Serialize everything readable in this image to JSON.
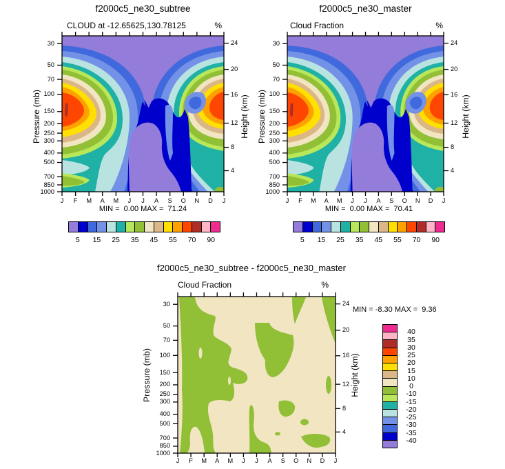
{
  "figure": {
    "background": "#FFFFFF",
    "months": [
      "J",
      "F",
      "M",
      "A",
      "M",
      "J",
      "J",
      "A",
      "S",
      "O",
      "N",
      "D",
      "J"
    ],
    "pressure_ticks": [
      30,
      50,
      70,
      100,
      150,
      200,
      250,
      300,
      400,
      500,
      700,
      850,
      1000
    ],
    "height_ticks": [
      24,
      20,
      16,
      12,
      8,
      4
    ],
    "palette": {
      "description": "contour fill colors, low value to high value",
      "colors": [
        "#937CDA",
        "#0000CC",
        "#3F69DC",
        "#7392E7",
        "#B9E3E1",
        "#1FB0A6",
        "#B8E859",
        "#91BF36",
        "#F1E5C2",
        "#DBB787",
        "#FFE000",
        "#FFA100",
        "#FF4600",
        "#AF2D26",
        "#FFB5C5",
        "#EF2B90"
      ]
    }
  },
  "chart_data": [
    {
      "type": "contour",
      "title": "f2000c5_ne30_subtree",
      "subtitle": "CLOUD at -12.65625,130.78125",
      "units": "%",
      "ylabel_left": "Pressure (mb)",
      "ylabel_right": "Height (km)",
      "y_scale": "log-pressure",
      "x_ticklabels": [
        "J",
        "F",
        "M",
        "A",
        "M",
        "J",
        "J",
        "A",
        "S",
        "O",
        "N",
        "D",
        "J"
      ],
      "y_ticklabels_pressure": [
        30,
        50,
        70,
        100,
        150,
        200,
        250,
        300,
        400,
        500,
        700,
        850,
        1000
      ],
      "y_ticklabels_height": [
        24,
        20,
        16,
        12,
        8,
        4
      ],
      "min": 0.0,
      "max": 71.24,
      "stats_text": "MIN =  0.00 MAX =  71.24",
      "contour_levels": [
        5,
        10,
        15,
        20,
        25,
        30,
        35,
        40,
        45,
        50,
        55,
        60,
        70,
        80,
        90
      ],
      "colorbar_labels": [
        5,
        15,
        25,
        35,
        45,
        55,
        70,
        90
      ],
      "colorbar_colors": [
        "#937CDA",
        "#0000CC",
        "#3F69DC",
        "#7392E7",
        "#B9E3E1",
        "#1FB0A6",
        "#B8E859",
        "#91BF36",
        "#F1E5C2",
        "#DBB787",
        "#FFE000",
        "#FFA100",
        "#FF4600",
        "#AF2D26",
        "#FFB5C5",
        "#EF2B90"
      ],
      "estimated_field": {
        "estimated_from_colors": true,
        "months": [
          "J",
          "F",
          "M",
          "A",
          "M",
          "J",
          "J",
          "A",
          "S",
          "O",
          "N",
          "D",
          "J"
        ],
        "pressure_levels": [
          30,
          50,
          70,
          100,
          150,
          200,
          250,
          300,
          400,
          500,
          700,
          850,
          1000
        ],
        "values_percent": [
          [
            2,
            2,
            2,
            2,
            2,
            2,
            2,
            2,
            2,
            2,
            2,
            2,
            2
          ],
          [
            3,
            3,
            2,
            2,
            2,
            2,
            2,
            2,
            2,
            2,
            2,
            3,
            3
          ],
          [
            8,
            7,
            5,
            3,
            2,
            2,
            2,
            2,
            2,
            3,
            4,
            7,
            8
          ],
          [
            55,
            45,
            25,
            15,
            8,
            7,
            6,
            5,
            7,
            12,
            20,
            40,
            55
          ],
          [
            72,
            62,
            38,
            20,
            12,
            8,
            7,
            6,
            8,
            15,
            30,
            55,
            70
          ],
          [
            60,
            52,
            30,
            16,
            10,
            8,
            7,
            5,
            6,
            12,
            25,
            45,
            58
          ],
          [
            46,
            38,
            22,
            12,
            8,
            6,
            5,
            4,
            5,
            8,
            18,
            35,
            45
          ],
          [
            36,
            30,
            18,
            10,
            6,
            4,
            4,
            3,
            4,
            6,
            12,
            28,
            35
          ],
          [
            30,
            26,
            15,
            8,
            5,
            3,
            3,
            2,
            3,
            5,
            10,
            22,
            28
          ],
          [
            28,
            24,
            14,
            8,
            4,
            3,
            2,
            2,
            2,
            4,
            8,
            18,
            26
          ],
          [
            22,
            20,
            12,
            7,
            4,
            3,
            2,
            2,
            2,
            3,
            6,
            12,
            20
          ],
          [
            28,
            26,
            15,
            8,
            5,
            4,
            3,
            2,
            2,
            3,
            6,
            14,
            25
          ],
          [
            12,
            12,
            8,
            5,
            4,
            3,
            3,
            2,
            2,
            2,
            4,
            8,
            10
          ]
        ]
      }
    },
    {
      "type": "contour",
      "title": "f2000c5_ne30_master",
      "subtitle": "Cloud Fraction",
      "units": "%",
      "ylabel_left": "Pressure (mb)",
      "ylabel_right": "Height (km)",
      "y_scale": "log-pressure",
      "x_ticklabels": [
        "J",
        "F",
        "M",
        "A",
        "M",
        "J",
        "J",
        "A",
        "S",
        "O",
        "N",
        "D",
        "J"
      ],
      "y_ticklabels_pressure": [
        30,
        50,
        70,
        100,
        150,
        200,
        250,
        300,
        400,
        500,
        700,
        850,
        1000
      ],
      "y_ticklabels_height": [
        24,
        20,
        16,
        12,
        8,
        4
      ],
      "min": 0.0,
      "max": 70.41,
      "stats_text": "MIN =  0.00 MAX =  70.41",
      "contour_levels": [
        5,
        10,
        15,
        20,
        25,
        30,
        35,
        40,
        45,
        50,
        55,
        60,
        70,
        80,
        90
      ],
      "colorbar_labels": [
        5,
        15,
        25,
        35,
        45,
        55,
        70,
        90
      ],
      "colorbar_colors": [
        "#937CDA",
        "#0000CC",
        "#3F69DC",
        "#7392E7",
        "#B9E3E1",
        "#1FB0A6",
        "#B8E859",
        "#91BF36",
        "#F1E5C2",
        "#DBB787",
        "#FFE000",
        "#FFA100",
        "#FF4600",
        "#AF2D26",
        "#FFB5C5",
        "#EF2B90"
      ],
      "estimated_field": {
        "estimated_from_colors": true,
        "months": [
          "J",
          "F",
          "M",
          "A",
          "M",
          "J",
          "J",
          "A",
          "S",
          "O",
          "N",
          "D",
          "J"
        ],
        "pressure_levels": [
          30,
          50,
          70,
          100,
          150,
          200,
          250,
          300,
          400,
          500,
          700,
          850,
          1000
        ],
        "values_percent": [
          [
            2,
            2,
            2,
            2,
            2,
            2,
            2,
            2,
            2,
            2,
            2,
            2,
            2
          ],
          [
            3,
            3,
            2,
            2,
            2,
            2,
            2,
            2,
            2,
            2,
            2,
            3,
            3
          ],
          [
            8,
            7,
            5,
            3,
            2,
            2,
            2,
            2,
            2,
            3,
            4,
            7,
            8
          ],
          [
            54,
            46,
            26,
            15,
            8,
            7,
            6,
            5,
            7,
            12,
            21,
            40,
            54
          ],
          [
            70,
            63,
            38,
            20,
            12,
            8,
            7,
            6,
            8,
            15,
            30,
            56,
            70
          ],
          [
            58,
            52,
            30,
            16,
            10,
            8,
            7,
            5,
            6,
            12,
            26,
            46,
            58
          ],
          [
            45,
            38,
            22,
            12,
            8,
            6,
            5,
            4,
            5,
            8,
            18,
            36,
            45
          ],
          [
            35,
            30,
            18,
            10,
            6,
            4,
            4,
            3,
            4,
            6,
            13,
            28,
            34
          ],
          [
            29,
            26,
            15,
            8,
            5,
            3,
            3,
            2,
            3,
            5,
            10,
            22,
            28
          ],
          [
            27,
            24,
            14,
            8,
            4,
            3,
            2,
            2,
            2,
            4,
            8,
            18,
            26
          ],
          [
            23,
            21,
            12,
            7,
            4,
            3,
            2,
            2,
            2,
            3,
            6,
            13,
            21
          ],
          [
            30,
            27,
            15,
            8,
            5,
            4,
            3,
            2,
            2,
            3,
            6,
            15,
            26
          ],
          [
            13,
            13,
            8,
            5,
            4,
            3,
            3,
            2,
            2,
            2,
            4,
            8,
            11
          ]
        ]
      }
    },
    {
      "type": "contour",
      "title": "f2000c5_ne30_subtree - f2000c5_ne30_master",
      "subtitle": "Cloud Fraction",
      "units": "%",
      "ylabel_left": "Pressure (mb)",
      "ylabel_right": "Height (km)",
      "y_scale": "log-pressure",
      "x_ticklabels": [
        "J",
        "F",
        "M",
        "A",
        "M",
        "J",
        "J",
        "A",
        "S",
        "O",
        "N",
        "D",
        "J"
      ],
      "y_ticklabels_pressure": [
        30,
        50,
        70,
        100,
        150,
        200,
        250,
        300,
        400,
        500,
        700,
        850,
        1000
      ],
      "y_ticklabels_height": [
        24,
        20,
        16,
        12,
        8,
        4
      ],
      "min": -8.3,
      "max": 9.36,
      "stats_text": "MIN = -8.30 MAX =  9.36",
      "contour_levels": [
        -40,
        -35,
        -30,
        -25,
        -20,
        -15,
        -10,
        0,
        10,
        15,
        20,
        25,
        30,
        35,
        40
      ],
      "colorbar_labels": [
        40,
        35,
        30,
        25,
        20,
        15,
        10,
        0,
        -10,
        -15,
        -20,
        -25,
        -30,
        -35,
        -40
      ],
      "colorbar_colors": [
        "#EF2B90",
        "#FFB5C5",
        "#AF2D26",
        "#FF4600",
        "#FFA100",
        "#FFE000",
        "#DBB787",
        "#F1E5C2",
        "#91BF36",
        "#B8E859",
        "#1FB0A6",
        "#B9E3E1",
        "#7392E7",
        "#3F69DC",
        "#0000CC",
        "#937CDA"
      ],
      "estimated_field": {
        "estimated_from_colors": true,
        "months": [
          "J",
          "F",
          "M",
          "A",
          "M",
          "J",
          "J",
          "A",
          "S",
          "O",
          "N",
          "D",
          "J"
        ],
        "pressure_levels": [
          30,
          50,
          70,
          100,
          150,
          200,
          250,
          300,
          400,
          500,
          700,
          850,
          1000
        ],
        "values_percent_diff": [
          [
            -2,
            -2,
            1,
            1,
            1,
            1,
            1,
            1,
            1,
            -2,
            1,
            -1,
            -2
          ],
          [
            -2,
            -2,
            -2,
            1,
            1,
            1,
            -2,
            1,
            1,
            1,
            1,
            1,
            -2
          ],
          [
            -2,
            -2,
            -2,
            -2,
            -1,
            1,
            -2,
            -2,
            -2,
            1,
            1,
            1,
            1
          ],
          [
            1,
            -3,
            -2,
            -2,
            -2,
            -1,
            1,
            -2,
            -2,
            1,
            -1,
            1,
            1
          ],
          [
            2,
            -3,
            -2,
            -2,
            -2,
            -1,
            1,
            1,
            1,
            1,
            1,
            -1,
            1
          ],
          [
            2,
            -2,
            -2,
            -2,
            -2,
            -1,
            1,
            1,
            1,
            1,
            1,
            -1,
            1
          ],
          [
            1,
            -2,
            -2,
            -1,
            1,
            1,
            1,
            1,
            1,
            1,
            1,
            1,
            1
          ],
          [
            1,
            -2,
            -2,
            -1,
            1,
            1,
            1,
            1,
            -1,
            -1,
            1,
            1,
            1
          ],
          [
            1,
            -1,
            -1,
            -2,
            -2,
            -1,
            -1,
            1,
            -1,
            1,
            1,
            1,
            1
          ],
          [
            1,
            -1,
            1,
            -2,
            -2,
            1,
            -1,
            1,
            1,
            1,
            -1,
            1,
            1
          ],
          [
            -1,
            -1,
            1,
            -2,
            -2,
            1,
            -2,
            -1,
            1,
            1,
            -1,
            -1,
            -1
          ],
          [
            -2,
            -1,
            1,
            -2,
            -2,
            1,
            -2,
            -2,
            1,
            1,
            1,
            -2,
            -1
          ],
          [
            -1,
            -1,
            1,
            -2,
            -2,
            1,
            -2,
            -1,
            1,
            1,
            1,
            -1,
            -1
          ]
        ]
      }
    }
  ]
}
